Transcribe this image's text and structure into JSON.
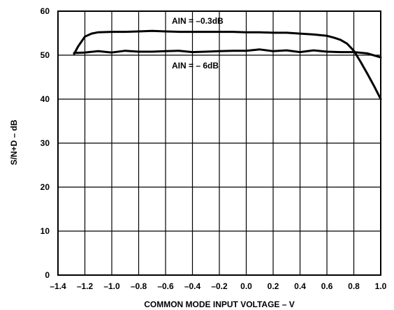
{
  "chart_data": {
    "type": "line",
    "xlabel": "COMMON MODE INPUT VOLTAGE – V",
    "ylabel": "S/N+D – dB",
    "xlim": [
      -1.4,
      1.0
    ],
    "ylim": [
      0,
      60
    ],
    "x_ticks": [
      "–1.4",
      "–1.2",
      "–1.0",
      "–0.8",
      "–0.6",
      "–0.4",
      "–0.2",
      "0.0",
      "0.2",
      "0.4",
      "0.6",
      "0.8",
      "1.0"
    ],
    "y_ticks": [
      "0",
      "10",
      "20",
      "30",
      "40",
      "50",
      "60"
    ],
    "grid": true,
    "annotations": [
      "AIN = –0.3dB",
      "AIN = – 6dB"
    ],
    "series": [
      {
        "x": [
          -1.28,
          -1.25,
          -1.2,
          -1.15,
          -1.1,
          -1.0,
          -0.9,
          -0.8,
          -0.7,
          -0.6,
          -0.5,
          -0.4,
          -0.3,
          -0.2,
          -0.1,
          0.0,
          0.1,
          0.2,
          0.3,
          0.4,
          0.5,
          0.6,
          0.65,
          0.7,
          0.75,
          0.8,
          0.85,
          0.9,
          0.95,
          1.0
        ],
        "values": [
          50.3,
          52.0,
          54.2,
          54.9,
          55.2,
          55.3,
          55.3,
          55.4,
          55.5,
          55.4,
          55.3,
          55.3,
          55.3,
          55.3,
          55.3,
          55.2,
          55.2,
          55.1,
          55.1,
          54.9,
          54.7,
          54.4,
          54.0,
          53.5,
          52.6,
          51.0,
          48.5,
          45.8,
          43.0,
          40.0
        ]
      },
      {
        "x": [
          -1.28,
          -1.2,
          -1.1,
          -1.0,
          -0.9,
          -0.8,
          -0.7,
          -0.6,
          -0.5,
          -0.4,
          -0.3,
          -0.2,
          -0.1,
          0.0,
          0.1,
          0.2,
          0.3,
          0.4,
          0.5,
          0.6,
          0.7,
          0.8,
          0.9,
          1.0
        ],
        "values": [
          50.5,
          50.6,
          50.9,
          50.6,
          51.0,
          50.8,
          50.8,
          50.9,
          51.0,
          50.7,
          50.8,
          50.9,
          51.0,
          51.0,
          51.3,
          50.9,
          51.1,
          50.7,
          51.1,
          50.8,
          50.7,
          50.7,
          50.4,
          49.5
        ]
      }
    ]
  }
}
